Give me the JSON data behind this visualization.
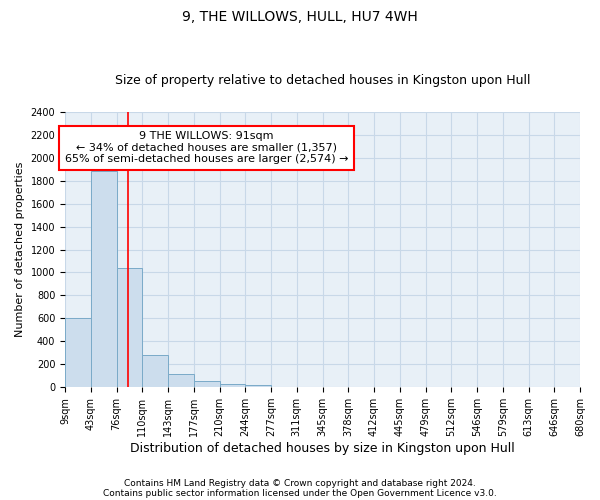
{
  "title": "9, THE WILLOWS, HULL, HU7 4WH",
  "subtitle": "Size of property relative to detached houses in Kingston upon Hull",
  "xlabel": "Distribution of detached houses by size in Kingston upon Hull",
  "ylabel": "Number of detached properties",
  "footer_line1": "Contains HM Land Registry data © Crown copyright and database right 2024.",
  "footer_line2": "Contains public sector information licensed under the Open Government Licence v3.0.",
  "annotation_line1": "9 THE WILLOWS: 91sqm",
  "annotation_line2": "← 34% of detached houses are smaller (1,357)",
  "annotation_line3": "65% of semi-detached houses are larger (2,574) →",
  "bar_values": [
    600,
    1880,
    1040,
    280,
    115,
    50,
    30,
    20,
    0,
    0,
    0,
    0,
    0,
    0,
    0,
    0,
    0,
    0,
    0,
    0
  ],
  "bin_labels": [
    "9sqm",
    "43sqm",
    "76sqm",
    "110sqm",
    "143sqm",
    "177sqm",
    "210sqm",
    "244sqm",
    "277sqm",
    "311sqm",
    "345sqm",
    "378sqm",
    "412sqm",
    "445sqm",
    "479sqm",
    "512sqm",
    "546sqm",
    "579sqm",
    "613sqm",
    "646sqm",
    "680sqm"
  ],
  "bar_color": "#ccdded",
  "bar_edge_color": "#7aaac8",
  "red_line_x": 2.44,
  "ylim": [
    0,
    2400
  ],
  "yticks": [
    0,
    200,
    400,
    600,
    800,
    1000,
    1200,
    1400,
    1600,
    1800,
    2000,
    2200,
    2400
  ],
  "grid_color": "#c8d8e8",
  "background_color": "#ffffff",
  "plot_bg_color": "#e8f0f7",
  "title_fontsize": 10,
  "subtitle_fontsize": 9,
  "ylabel_fontsize": 8,
  "xlabel_fontsize": 9,
  "tick_fontsize": 7,
  "footer_fontsize": 6.5,
  "annotation_fontsize": 8
}
